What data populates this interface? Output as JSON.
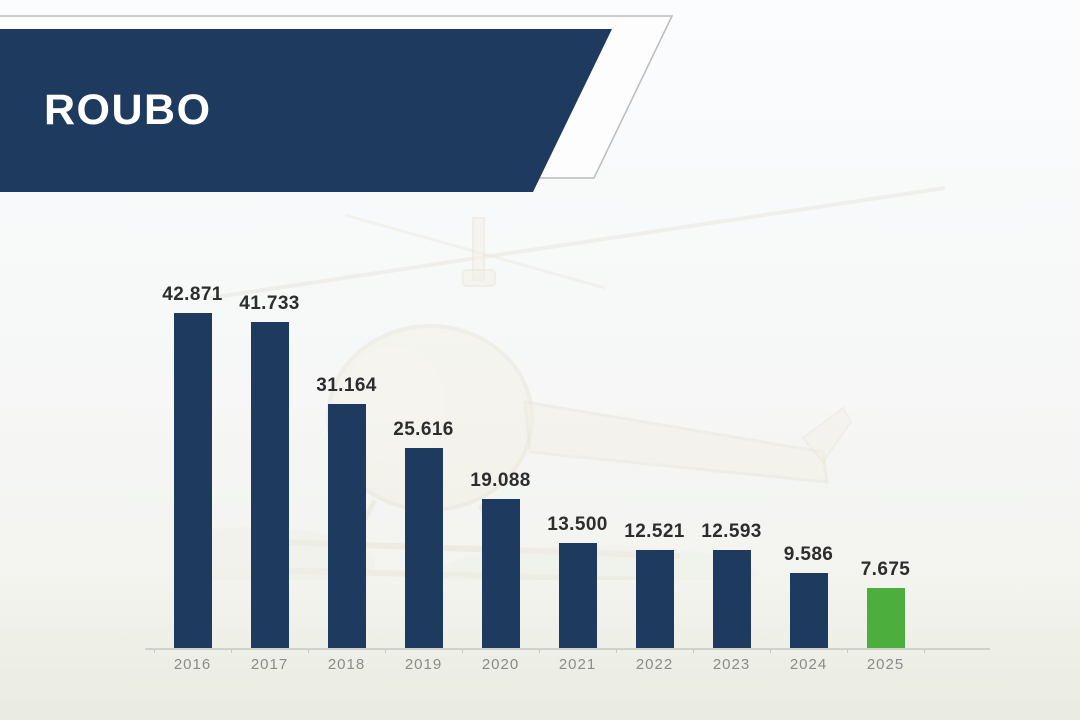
{
  "header": {
    "title": "ROUBO"
  },
  "chart_data": {
    "type": "bar",
    "title": "ROUBO",
    "categories": [
      "2016",
      "2017",
      "2018",
      "2019",
      "2020",
      "2021",
      "2022",
      "2023",
      "2024",
      "2025"
    ],
    "values": [
      42871,
      41733,
      31164,
      25616,
      19088,
      13500,
      12521,
      12593,
      9586,
      7675
    ],
    "value_labels": [
      "42.871",
      "41.733",
      "31.164",
      "25.616",
      "19.088",
      "13.500",
      "12.521",
      "12.593",
      "9.586",
      "7.675"
    ],
    "highlight_index": 9,
    "bar_color": "#1e3a5f",
    "highlight_color": "#4cae3c",
    "xlabel": "",
    "ylabel": "",
    "ylim": [
      0,
      45000
    ],
    "grid": false,
    "legend": false
  },
  "colors": {
    "banner_navy": "#1e3a5f",
    "banner_outline": "#bcbcbc",
    "value_label": "#2d2d2d",
    "year_label": "#8b8b8b",
    "axis_line": "#d0d0d0"
  },
  "watermark": {
    "name": "helicopter-watermark"
  }
}
